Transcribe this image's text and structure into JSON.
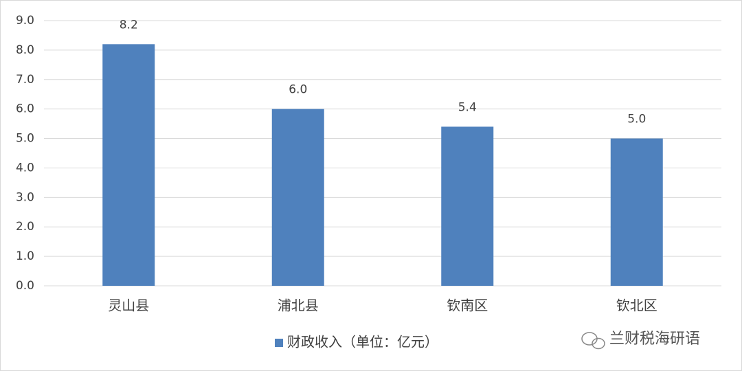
{
  "chart_data": {
    "type": "bar",
    "categories": [
      "灵山县",
      "浦北县",
      "钦南区",
      "钦北区"
    ],
    "series": [
      {
        "name": "财政收入（单位：亿元）",
        "color": "#4f81bd",
        "values": [
          8.2,
          6,
          5.4,
          5
        ],
        "value_labels": [
          "8.2",
          "6.0",
          "5.4",
          "5.0"
        ]
      }
    ],
    "ylim": [
      0,
      9
    ],
    "yticks": [
      {
        "value": 0,
        "label": "0.0"
      },
      {
        "value": 1,
        "label": "1.0"
      },
      {
        "value": 2,
        "label": "2.0"
      },
      {
        "value": 3,
        "label": "3.0"
      },
      {
        "value": 4,
        "label": "4.0"
      },
      {
        "value": 5,
        "label": "5.0"
      },
      {
        "value": 6,
        "label": "6.0"
      },
      {
        "value": 7,
        "label": "7.0"
      },
      {
        "value": 8,
        "label": "8.0"
      },
      {
        "value": 9,
        "label": "9.0"
      }
    ],
    "grid": true,
    "legend": "bottom",
    "watermark": "兰财税海研语"
  }
}
